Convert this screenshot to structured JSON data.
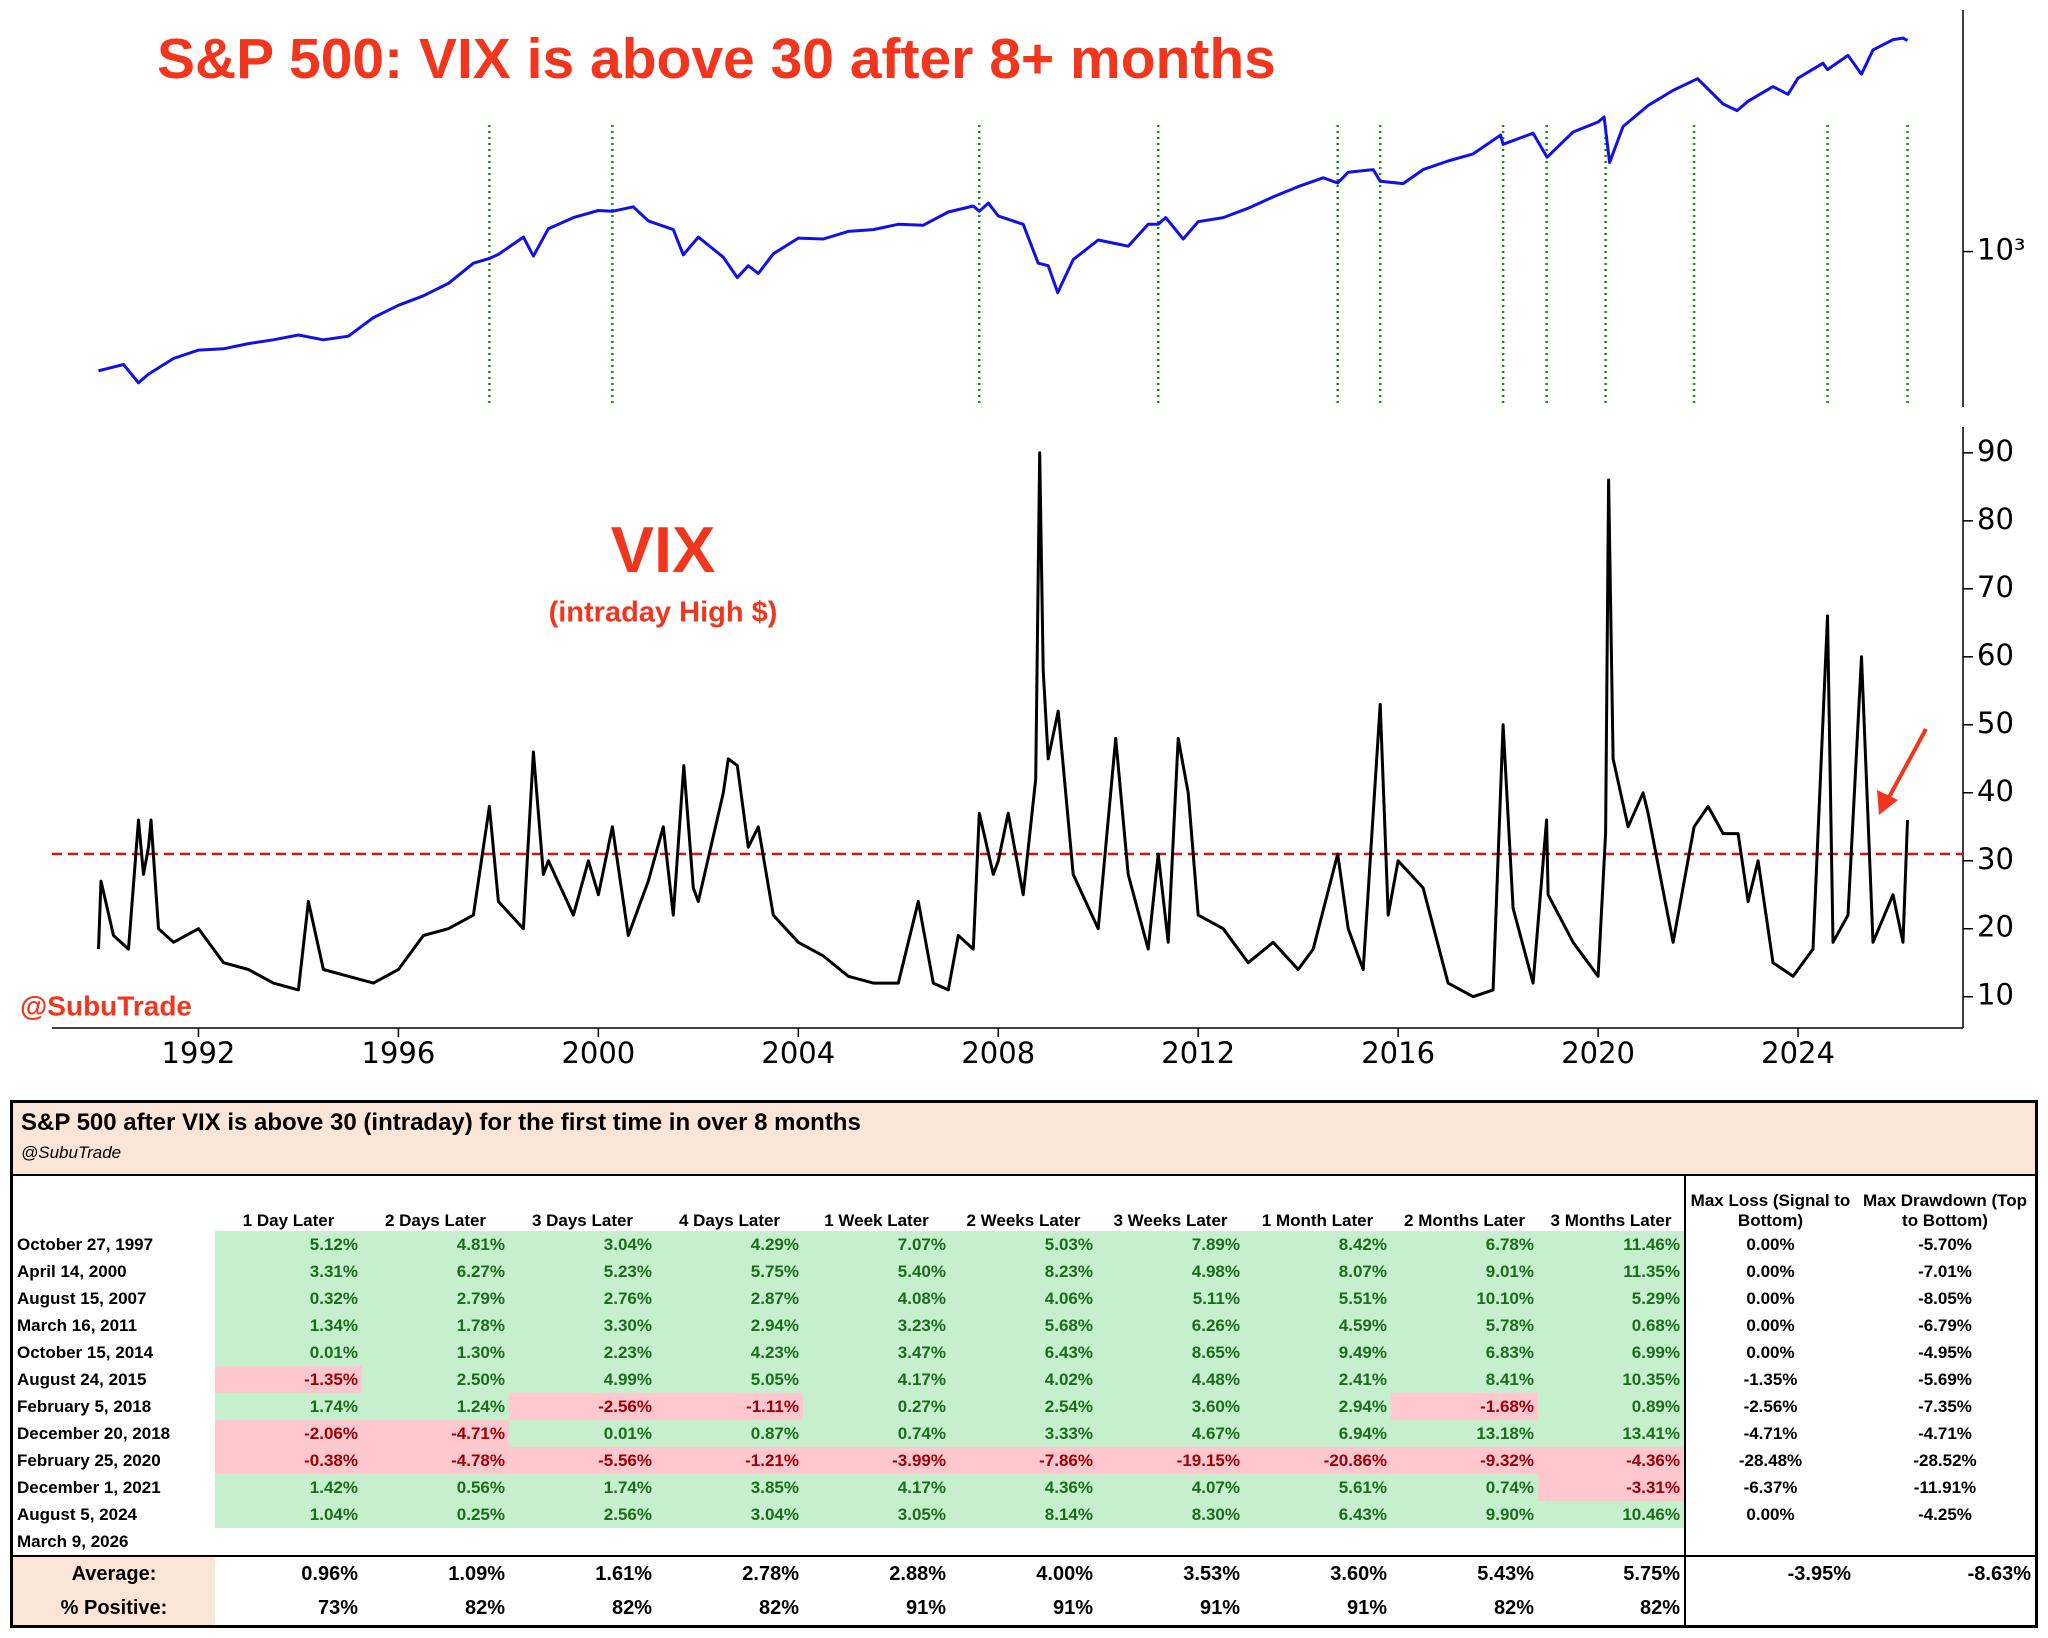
{
  "chart_data": [
    {
      "type": "line",
      "title": "S&P 500: VIX is above 30 after 8+ months",
      "log_scale": true,
      "color": "#1010e8",
      "xlim": [
        1989.07,
        2027.3
      ],
      "ylim": [
        245,
        8900
      ],
      "yticks": [
        {
          "value": 1000,
          "label": "10³"
        }
      ],
      "signals": [
        1997.82,
        2000.28,
        2007.62,
        2011.2,
        2014.79,
        2015.64,
        2018.1,
        2018.97,
        2020.15,
        2021.92,
        2024.59,
        2026.19
      ],
      "signal_color": "#1a8a1a",
      "x": [
        1990.0,
        1990.5,
        1990.8,
        1991.0,
        1991.5,
        1992.0,
        1992.5,
        1993.0,
        1993.5,
        1994.0,
        1994.5,
        1995.0,
        1995.5,
        1996.0,
        1996.5,
        1997.0,
        1997.5,
        1997.82,
        1998.0,
        1998.5,
        1998.7,
        1999.0,
        1999.5,
        2000.0,
        2000.28,
        2000.7,
        2001.0,
        2001.5,
        2001.7,
        2002.0,
        2002.5,
        2002.78,
        2003.0,
        2003.2,
        2003.5,
        2004.0,
        2004.5,
        2005.0,
        2005.5,
        2006.0,
        2006.5,
        2007.0,
        2007.5,
        2007.62,
        2007.8,
        2008.0,
        2008.5,
        2008.8,
        2009.0,
        2009.19,
        2009.5,
        2010.0,
        2010.4,
        2010.6,
        2011.0,
        2011.2,
        2011.35,
        2011.7,
        2012.0,
        2012.5,
        2013.0,
        2013.5,
        2014.0,
        2014.5,
        2014.79,
        2015.0,
        2015.5,
        2015.64,
        2016.1,
        2016.5,
        2017.0,
        2017.5,
        2018.05,
        2018.1,
        2018.7,
        2018.98,
        2019.5,
        2020.0,
        2020.12,
        2020.23,
        2020.5,
        2021.0,
        2021.5,
        2021.99,
        2022.5,
        2022.78,
        2023.0,
        2023.5,
        2023.8,
        2024.0,
        2024.5,
        2024.59,
        2025.0,
        2025.27,
        2025.5,
        2025.9,
        2026.1,
        2026.19
      ],
      "values": [
        340,
        360,
        305,
        330,
        380,
        410,
        415,
        435,
        450,
        470,
        450,
        465,
        550,
        615,
        670,
        750,
        900,
        940,
        975,
        1140,
        960,
        1230,
        1360,
        1450,
        1440,
        1500,
        1320,
        1220,
        970,
        1140,
        950,
        790,
        880,
        820,
        980,
        1130,
        1120,
        1200,
        1220,
        1280,
        1270,
        1430,
        1510,
        1440,
        1550,
        1380,
        1280,
        900,
        880,
        690,
        930,
        1110,
        1070,
        1050,
        1280,
        1280,
        1360,
        1120,
        1310,
        1360,
        1480,
        1640,
        1800,
        1950,
        1860,
        2050,
        2100,
        1890,
        1850,
        2100,
        2270,
        2420,
        2870,
        2640,
        2920,
        2350,
        2950,
        3230,
        3380,
        2240,
        3100,
        3750,
        4300,
        4780,
        3800,
        3580,
        3900,
        4450,
        4150,
        4800,
        5500,
        5190,
        5900,
        4980,
        6200,
        6800,
        6900,
        6750
      ]
    },
    {
      "type": "line",
      "title": "VIX",
      "subtitle": "(intraday High $)",
      "watermark": "@SubuTrade",
      "color": "#000000",
      "threshold": 31,
      "threshold_color": "#e01010",
      "xlim": [
        1989.07,
        2027.3
      ],
      "xticks": [
        1992,
        1996,
        2000,
        2004,
        2008,
        2012,
        2016,
        2020,
        2024
      ],
      "ylim": [
        5.4,
        93.8
      ],
      "yticks": [
        10,
        20,
        30,
        40,
        50,
        60,
        70,
        80,
        90
      ],
      "x": [
        1990.0,
        1990.05,
        1990.3,
        1990.6,
        1990.8,
        1990.9,
        1991.0,
        1991.05,
        1991.2,
        1991.5,
        1992.0,
        1992.5,
        1993.0,
        1993.5,
        1994.0,
        1994.2,
        1994.5,
        1995.0,
        1995.5,
        1996.0,
        1996.5,
        1997.0,
        1997.5,
        1997.82,
        1998.0,
        1998.5,
        1998.7,
        1998.9,
        1999.0,
        1999.5,
        1999.8,
        2000.0,
        2000.28,
        2000.6,
        2001.0,
        2001.3,
        2001.5,
        2001.71,
        2001.9,
        2002.0,
        2002.5,
        2002.6,
        2002.78,
        2003.0,
        2003.2,
        2003.5,
        2004.0,
        2004.5,
        2005.0,
        2005.5,
        2006.0,
        2006.4,
        2006.7,
        2007.0,
        2007.2,
        2007.5,
        2007.62,
        2007.9,
        2008.0,
        2008.2,
        2008.5,
        2008.75,
        2008.83,
        2008.9,
        2009.0,
        2009.2,
        2009.5,
        2010.0,
        2010.35,
        2010.6,
        2011.0,
        2011.2,
        2011.4,
        2011.6,
        2011.8,
        2012.0,
        2012.5,
        2013.0,
        2013.5,
        2014.0,
        2014.3,
        2014.79,
        2015.0,
        2015.3,
        2015.64,
        2015.8,
        2016.0,
        2016.5,
        2017.0,
        2017.5,
        2017.9,
        2018.1,
        2018.3,
        2018.7,
        2018.97,
        2019.0,
        2019.5,
        2020.0,
        2020.15,
        2020.21,
        2020.3,
        2020.6,
        2020.9,
        2021.0,
        2021.5,
        2021.92,
        2022.2,
        2022.5,
        2022.8,
        2023.0,
        2023.2,
        2023.5,
        2023.9,
        2024.3,
        2024.59,
        2024.7,
        2025.0,
        2025.27,
        2025.5,
        2025.9,
        2026.1,
        2026.19
      ],
      "values": [
        17,
        27,
        19,
        17,
        36,
        28,
        32,
        36,
        20,
        18,
        20,
        15,
        14,
        12,
        11,
        24,
        14,
        13,
        12,
        14,
        19,
        20,
        22,
        38,
        24,
        20,
        46,
        28,
        30,
        22,
        30,
        25,
        35,
        19,
        27,
        35,
        22,
        44,
        26,
        24,
        40,
        45,
        44,
        32,
        35,
        22,
        18,
        16,
        13,
        12,
        12,
        24,
        12,
        11,
        19,
        17,
        37,
        28,
        30,
        37,
        25,
        42,
        90,
        58,
        45,
        52,
        28,
        20,
        48,
        28,
        17,
        31,
        18,
        48,
        40,
        22,
        20,
        15,
        18,
        14,
        17,
        31,
        20,
        14,
        53,
        22,
        30,
        26,
        12,
        10,
        11,
        50,
        23,
        12,
        36,
        25,
        18,
        13,
        34,
        86,
        45,
        35,
        40,
        37,
        18,
        35,
        38,
        34,
        34,
        24,
        30,
        15,
        13,
        17,
        66,
        18,
        22,
        60,
        18,
        25,
        18,
        36
      ]
    }
  ],
  "table": {
    "title": "S&P 500 after VIX is above 30 (intraday) for the first time in over 8 months",
    "subtitle": "@SubuTrade",
    "headers": [
      "1 Day Later",
      "2 Days Later",
      "3 Days Later",
      "4 Days Later",
      "1 Week Later",
      "2 Weeks Later",
      "3 Weeks Later",
      "1 Month Later",
      "2 Months Later",
      "3 Months Later",
      "Max Loss (Signal to Bottom)",
      "Max Drawdown (Top to Bottom)"
    ],
    "rows": [
      [
        "October 27, 1997",
        "5.12%",
        "4.81%",
        "3.04%",
        "4.29%",
        "7.07%",
        "5.03%",
        "7.89%",
        "8.42%",
        "6.78%",
        "11.46%",
        "0.00%",
        "-5.70%"
      ],
      [
        "April 14, 2000",
        "3.31%",
        "6.27%",
        "5.23%",
        "5.75%",
        "5.40%",
        "8.23%",
        "4.98%",
        "8.07%",
        "9.01%",
        "11.35%",
        "0.00%",
        "-7.01%"
      ],
      [
        "August 15, 2007",
        "0.32%",
        "2.79%",
        "2.76%",
        "2.87%",
        "4.08%",
        "4.06%",
        "5.11%",
        "5.51%",
        "10.10%",
        "5.29%",
        "0.00%",
        "-8.05%"
      ],
      [
        "March 16, 2011",
        "1.34%",
        "1.78%",
        "3.30%",
        "2.94%",
        "3.23%",
        "5.68%",
        "6.26%",
        "4.59%",
        "5.78%",
        "0.68%",
        "0.00%",
        "-6.79%"
      ],
      [
        "October 15, 2014",
        "0.01%",
        "1.30%",
        "2.23%",
        "4.23%",
        "3.47%",
        "6.43%",
        "8.65%",
        "9.49%",
        "6.83%",
        "6.99%",
        "0.00%",
        "-4.95%"
      ],
      [
        "August 24, 2015",
        "-1.35%",
        "2.50%",
        "4.99%",
        "5.05%",
        "4.17%",
        "4.02%",
        "4.48%",
        "2.41%",
        "8.41%",
        "10.35%",
        "-1.35%",
        "-5.69%"
      ],
      [
        "February 5, 2018",
        "1.74%",
        "1.24%",
        "-2.56%",
        "-1.11%",
        "0.27%",
        "2.54%",
        "3.60%",
        "2.94%",
        "-1.68%",
        "0.89%",
        "-2.56%",
        "-7.35%"
      ],
      [
        "December 20, 2018",
        "-2.06%",
        "-4.71%",
        "0.01%",
        "0.87%",
        "0.74%",
        "3.33%",
        "4.67%",
        "6.94%",
        "13.18%",
        "13.41%",
        "-4.71%",
        "-4.71%"
      ],
      [
        "February 25, 2020",
        "-0.38%",
        "-4.78%",
        "-5.56%",
        "-1.21%",
        "-3.99%",
        "-7.86%",
        "-19.15%",
        "-20.86%",
        "-9.32%",
        "-4.36%",
        "-28.48%",
        "-28.52%"
      ],
      [
        "December 1, 2021",
        "1.42%",
        "0.56%",
        "1.74%",
        "3.85%",
        "4.17%",
        "4.36%",
        "4.07%",
        "5.61%",
        "0.74%",
        "-3.31%",
        "-6.37%",
        "-11.91%"
      ],
      [
        "August 5, 2024",
        "1.04%",
        "0.25%",
        "2.56%",
        "3.04%",
        "3.05%",
        "8.14%",
        "8.30%",
        "6.43%",
        "9.90%",
        "10.46%",
        "0.00%",
        "-4.25%"
      ],
      [
        "March 9, 2026"
      ]
    ],
    "footer": [
      [
        "Average:",
        "0.96%",
        "1.09%",
        "1.61%",
        "2.78%",
        "2.88%",
        "4.00%",
        "3.53%",
        "3.60%",
        "5.43%",
        "5.75%",
        "-3.95%",
        "-8.63%"
      ],
      [
        "% Positive:",
        "73%",
        "82%",
        "82%",
        "82%",
        "91%",
        "91%",
        "91%",
        "91%",
        "82%",
        "82%"
      ]
    ]
  }
}
